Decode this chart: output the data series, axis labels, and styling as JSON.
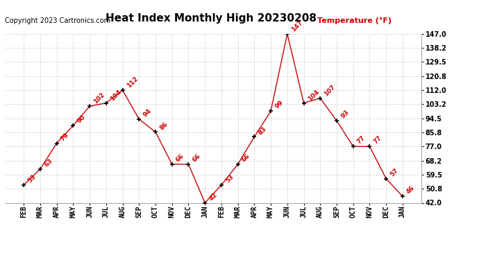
{
  "title": "Heat Index Monthly High 20230208",
  "copyright": "Copyright 2023 Cartronics.com",
  "legend": "Temperature (°F)",
  "x_labels": [
    "FEB",
    "MAR",
    "APR",
    "MAY",
    "JUN",
    "JUL",
    "AUG",
    "SEP",
    "OCT",
    "NOV",
    "DEC",
    "JAN",
    "FEB",
    "MAR",
    "APR",
    "MAY",
    "JUN",
    "JUL",
    "AUG",
    "SEP",
    "OCT",
    "NOV",
    "DEC",
    "JAN"
  ],
  "y_values": [
    53,
    63,
    79,
    90,
    102,
    104,
    112,
    94,
    86,
    66,
    66,
    42,
    53,
    66,
    83,
    99,
    147,
    104,
    107,
    93,
    77,
    77,
    57,
    46
  ],
  "ylim": [
    42.0,
    147.0
  ],
  "yticks": [
    42.0,
    50.8,
    59.5,
    68.2,
    77.0,
    85.8,
    94.5,
    103.2,
    112.0,
    120.8,
    129.5,
    138.2,
    147.0
  ],
  "line_color": "#cc0000",
  "marker_color": "#000000",
  "text_color": "#cc0000",
  "title_fontsize": 11,
  "copyright_fontsize": 7,
  "legend_fontsize": 8,
  "annot_fontsize": 6.5,
  "tick_fontsize": 7,
  "background_color": "#ffffff",
  "grid_color": "#cccccc"
}
